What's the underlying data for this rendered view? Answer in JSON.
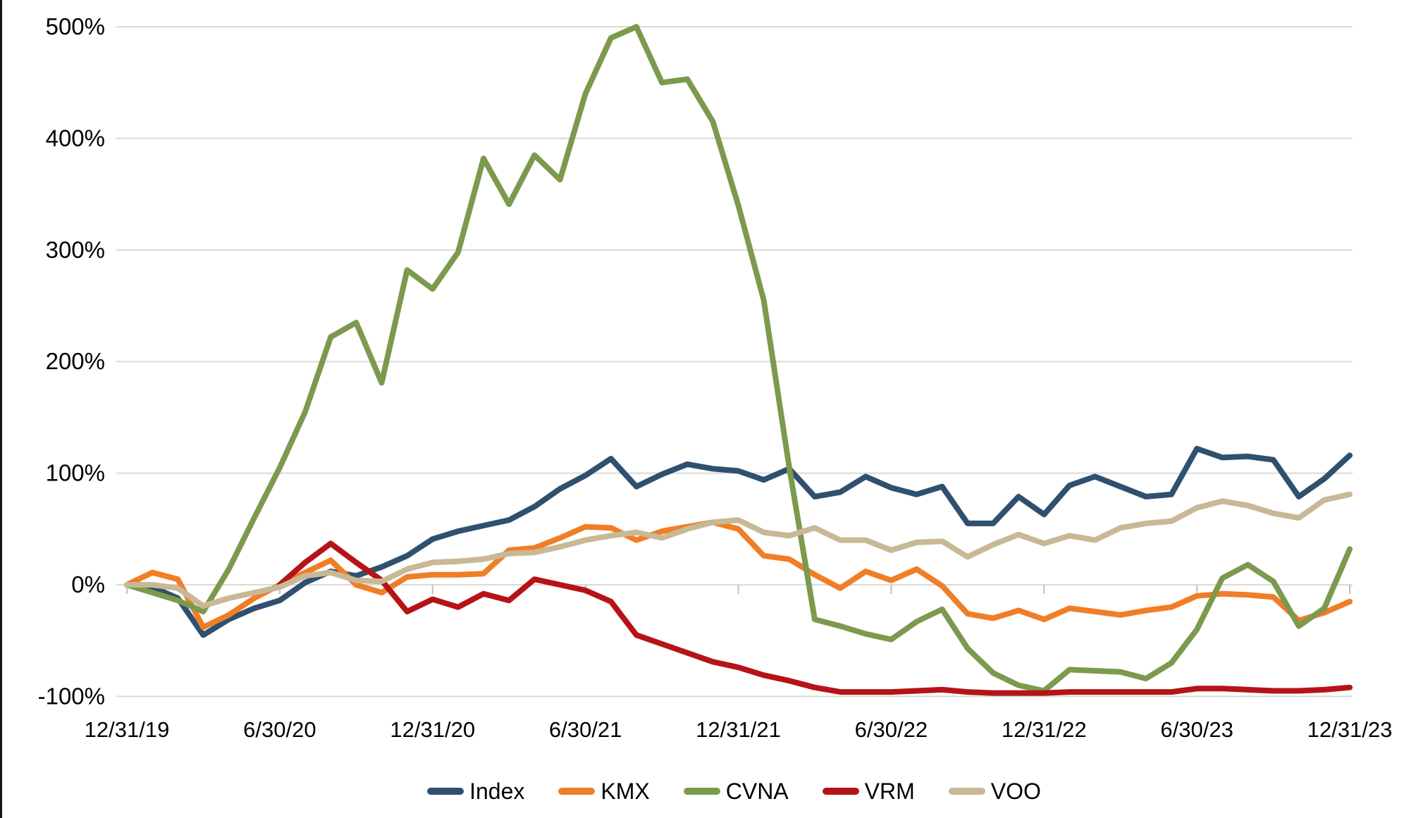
{
  "chart_data": {
    "type": "line",
    "title": "",
    "xlabel": "",
    "ylabel": "",
    "ylim": [
      -100,
      500
    ],
    "y_tick_values": [
      500,
      400,
      300,
      200,
      100,
      0,
      -100
    ],
    "y_tick_labels": [
      "500%",
      "400%",
      "300%",
      "200%",
      "100%",
      "0%",
      "-100%"
    ],
    "x_tick_indices": [
      0,
      6,
      12,
      18,
      24,
      30,
      36,
      42,
      48
    ],
    "x_tick_labels": [
      "12/31/19",
      "6/30/20",
      "12/31/20",
      "6/30/21",
      "12/31/21",
      "6/30/22",
      "12/31/22",
      "6/30/23",
      "12/31/23"
    ],
    "grid": "horizontal",
    "legend_position": "bottom",
    "x": [
      "12/31/19",
      "1/31/20",
      "2/29/20",
      "3/31/20",
      "4/30/20",
      "5/31/20",
      "6/30/20",
      "7/31/20",
      "8/31/20",
      "9/30/20",
      "10/31/20",
      "11/30/20",
      "12/31/20",
      "1/31/21",
      "2/28/21",
      "3/31/21",
      "4/30/21",
      "5/31/21",
      "6/30/21",
      "7/31/21",
      "8/31/21",
      "9/30/21",
      "10/31/21",
      "11/30/21",
      "12/31/21",
      "1/31/22",
      "2/28/22",
      "3/31/22",
      "4/30/22",
      "5/31/22",
      "6/30/22",
      "7/31/22",
      "8/31/22",
      "9/30/22",
      "10/31/22",
      "11/30/22",
      "12/31/22",
      "1/31/23",
      "2/28/23",
      "3/31/23",
      "4/30/23",
      "5/31/23",
      "6/30/23",
      "7/31/23",
      "8/31/23",
      "9/30/23",
      "10/31/23",
      "11/30/23",
      "12/31/23"
    ],
    "series": [
      {
        "name": "Index",
        "color": "#2f506f",
        "values": [
          0,
          -2,
          -12,
          -45,
          -31,
          -21,
          -14,
          2,
          12,
          8,
          16,
          26,
          41,
          48,
          53,
          58,
          70,
          86,
          98,
          113,
          88,
          99,
          108,
          104,
          102,
          94,
          104,
          79,
          83,
          97,
          87,
          81,
          88,
          55,
          55,
          79,
          63,
          89,
          97,
          88,
          79,
          81,
          122,
          114,
          115,
          112,
          79,
          95,
          116
        ]
      },
      {
        "name": "KMX",
        "color": "#f07e27",
        "values": [
          0,
          11,
          5,
          -38,
          -27,
          -12,
          0,
          11,
          22,
          0,
          -7,
          7,
          9,
          9,
          10,
          31,
          33,
          42,
          52,
          51,
          40,
          48,
          52,
          56,
          50,
          26,
          23,
          9,
          -3,
          12,
          4,
          14,
          -1,
          -26,
          -30,
          -23,
          -31,
          -21,
          -24,
          -27,
          -23,
          -20,
          -10,
          -8,
          -9,
          -11,
          -32,
          -25,
          -15
        ]
      },
      {
        "name": "CVNA",
        "color": "#7c9a4e",
        "values": [
          0,
          -7,
          -14,
          -24,
          14,
          60,
          105,
          155,
          222,
          235,
          181,
          282,
          265,
          298,
          382,
          341,
          385,
          363,
          440,
          490,
          500,
          450,
          453,
          415,
          340,
          255,
          105,
          -31,
          -37,
          -44,
          -49,
          -33,
          -22,
          -57,
          -79,
          -90,
          -95,
          -76,
          -77,
          -78,
          -84,
          -70,
          -40,
          6,
          18,
          3,
          -37,
          -21,
          32
        ]
      },
      {
        "name": "VRM",
        "color": "#b51318",
        "values": [
          null,
          null,
          null,
          null,
          null,
          null,
          0,
          20,
          37,
          20,
          4,
          -24,
          -13,
          -20,
          -8,
          -14,
          5,
          0,
          -5,
          -15,
          -45,
          -53,
          -61,
          -69,
          -74,
          -81,
          -86,
          -92,
          -96,
          -96,
          -96,
          -95,
          -94,
          -96,
          -97,
          -97,
          -97,
          -96,
          -96,
          -96,
          -96,
          -96,
          -93,
          -93,
          -94,
          -95,
          -95,
          -94,
          -92
        ]
      },
      {
        "name": "VOO",
        "color": "#c8b896",
        "values": [
          0,
          0,
          -3,
          -19,
          -12,
          -7,
          -2,
          8,
          11,
          4,
          3,
          14,
          20,
          21,
          23,
          28,
          29,
          34,
          40,
          44,
          47,
          42,
          50,
          56,
          58,
          47,
          44,
          51,
          40,
          40,
          31,
          38,
          39,
          25,
          36,
          45,
          37,
          44,
          40,
          51,
          55,
          57,
          69,
          75,
          71,
          64,
          60,
          76,
          81
        ]
      }
    ]
  },
  "legend": {
    "items": [
      {
        "label": "Index"
      },
      {
        "label": "KMX"
      },
      {
        "label": "CVNA"
      },
      {
        "label": "VRM"
      },
      {
        "label": "VOO"
      }
    ]
  }
}
